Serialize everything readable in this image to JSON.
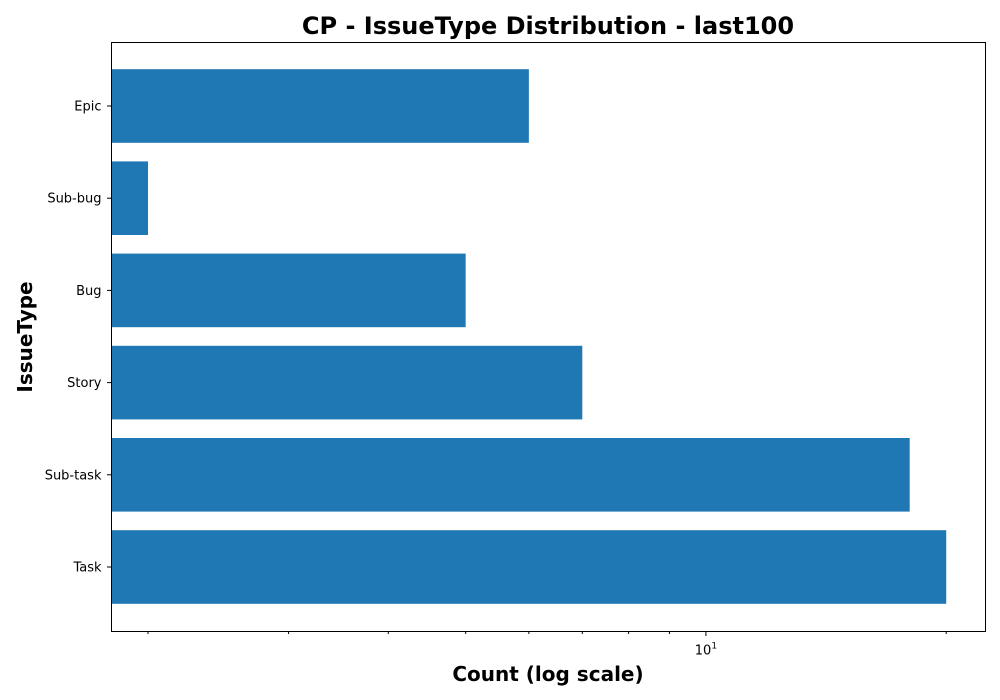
{
  "chart_data": {
    "type": "bar",
    "orientation": "horizontal",
    "title": "CP - IssueType Distribution - last100",
    "xlabel": "Count (log scale)",
    "ylabel": "IssueType",
    "x_scale": "log",
    "xlim": [
      1.8,
      22.4
    ],
    "x_tick_labels": [
      {
        "value": 10,
        "base": "10",
        "exponent": "1"
      }
    ],
    "x_minor_ticks": [
      2,
      3,
      4,
      5,
      6,
      7,
      8,
      9,
      20
    ],
    "categories": [
      "Epic",
      "Sub-bug",
      "Bug",
      "Story",
      "Sub-task",
      "Task"
    ],
    "values": [
      6,
      2,
      5,
      7,
      18,
      20
    ],
    "bar_color": "#1f77b4",
    "grid": false,
    "legend": "none"
  }
}
